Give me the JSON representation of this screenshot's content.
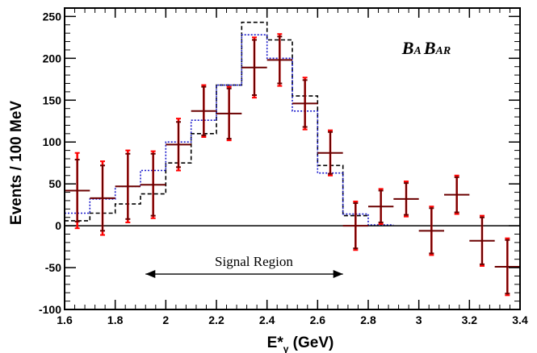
{
  "chart_data": {
    "type": "scatter",
    "xlabel_main": "E*",
    "xlabel_sub": "γ",
    "xlabel_unit": " (GeV)",
    "ylabel": "Events / 100 MeV",
    "xlim": [
      1.6,
      3.4
    ],
    "ylim": [
      -100,
      260
    ],
    "xticks": [
      1.6,
      1.8,
      2,
      2.2,
      2.4,
      2.6,
      2.8,
      3,
      3.2,
      3.4
    ],
    "yticks": [
      -100,
      -50,
      0,
      50,
      100,
      150,
      200,
      250
    ],
    "grid": false,
    "zero_line": true,
    "data": {
      "x": [
        1.65,
        1.75,
        1.85,
        1.95,
        2.05,
        2.15,
        2.25,
        2.35,
        2.45,
        2.55,
        2.65,
        2.75,
        2.85,
        2.95,
        3.05,
        3.15,
        3.25,
        3.35
      ],
      "y": [
        42,
        33,
        47,
        49,
        97,
        137,
        134,
        189,
        198,
        146,
        87,
        0,
        23,
        32,
        -6,
        37,
        -18,
        -49
      ],
      "err_stat": [
        37,
        39,
        39,
        37,
        27,
        29,
        30,
        33,
        28,
        28,
        25,
        27,
        19,
        19,
        27,
        21,
        28,
        32
      ],
      "err_total": [
        45,
        44,
        43,
        40,
        31,
        31,
        32,
        36,
        31,
        31,
        27,
        29,
        21,
        21,
        29,
        23,
        30,
        34
      ],
      "marker_color": "#6b0000",
      "total_error_color": "#ff0000"
    },
    "series": [
      {
        "style": "dashed",
        "color": "#000000",
        "edges": [
          1.6,
          1.7,
          1.8,
          1.9,
          2.0,
          2.1,
          2.2,
          2.3,
          2.4,
          2.5,
          2.6,
          2.7,
          2.8
        ],
        "values": [
          6,
          15,
          26,
          38,
          75,
          110,
          168,
          243,
          222,
          155,
          72,
          12
        ]
      },
      {
        "style": "dotted",
        "color": "#1a1acc",
        "edges": [
          1.6,
          1.7,
          1.8,
          1.9,
          2.0,
          2.1,
          2.2,
          2.3,
          2.4,
          2.5,
          2.6,
          2.7,
          2.8,
          2.9
        ],
        "values": [
          15,
          32,
          47,
          66,
          100,
          126,
          168,
          228,
          200,
          137,
          63,
          14,
          1
        ]
      }
    ],
    "annotations": {
      "label": "Signal Region",
      "x_from": 1.92,
      "x_to": 2.7,
      "y": -50,
      "experiment": [
        "B",
        "A",
        "B",
        "AR"
      ]
    }
  }
}
